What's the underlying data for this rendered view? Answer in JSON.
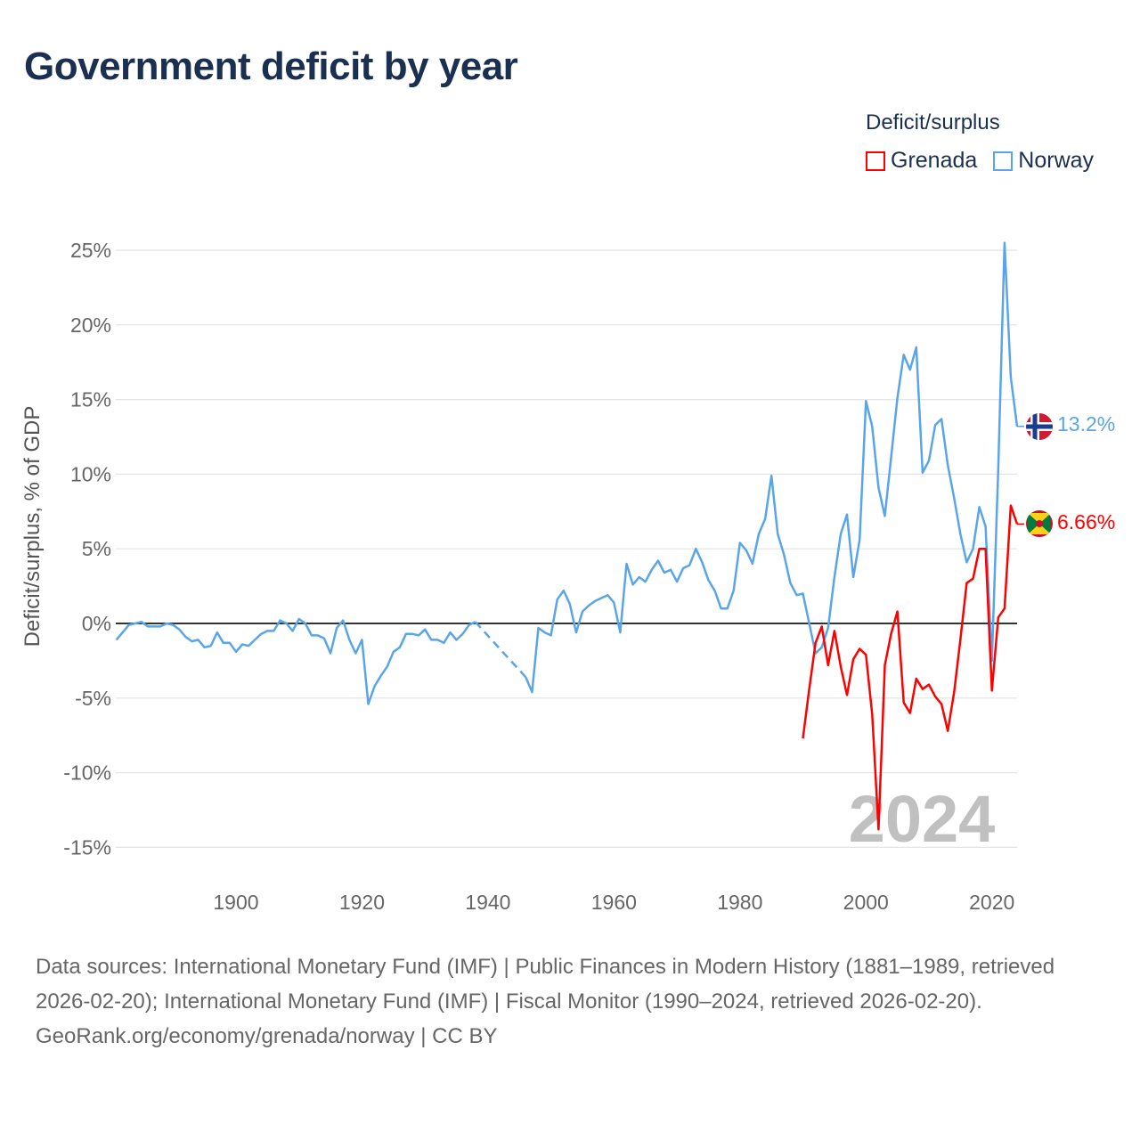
{
  "title": "Government deficit by year",
  "legend": {
    "title": "Deficit/surplus",
    "items": [
      {
        "name": "Grenada",
        "color": "#ff0000"
      },
      {
        "name": "Norway",
        "color": "#5aa5ea"
      }
    ]
  },
  "watermark_year": "2024",
  "footer": {
    "sources": "Data sources: International Monetary Fund (IMF) | Public Finances in Modern History (1881–1989, retrieved 2026-02-20); International Monetary Fund (IMF) | Fiscal Monitor (1990–2024, retrieved 2026-02-20).",
    "credit": "GeoRank.org/economy/grenada/norway | CC BY"
  },
  "chart_data": {
    "type": "line",
    "title": "Government deficit by year",
    "xlabel": "",
    "ylabel": "Deficit/surplus, % of GDP",
    "xlim": [
      1881,
      2024
    ],
    "ylim": [
      -15,
      25
    ],
    "xticks": [
      "1900",
      "1920",
      "1940",
      "1960",
      "1980",
      "2000",
      "2020"
    ],
    "yticks": [
      "25%",
      "20%",
      "15%",
      "10%",
      "5%",
      "0%",
      "-5%",
      "-10%",
      "-15%"
    ],
    "grid": true,
    "legend_position": "top-right",
    "end_labels": {
      "Norway": "13.2%",
      "Grenada": "6.66%"
    },
    "series": [
      {
        "name": "Norway",
        "color": "#5aa5ea",
        "start_year": 1881,
        "values": [
          -1.1,
          -0.6,
          -0.1,
          0.0,
          0.1,
          -0.2,
          -0.2,
          -0.2,
          0.0,
          -0.1,
          -0.4,
          -0.9,
          -1.2,
          -1.1,
          -1.6,
          -1.5,
          -0.6,
          -1.3,
          -1.3,
          -1.9,
          -1.4,
          -1.5,
          -1.1,
          -0.7,
          -0.5,
          -0.5,
          0.2,
          0.0,
          -0.5,
          0.3,
          0.0,
          -0.8,
          -0.8,
          -1.0,
          -2.0,
          -0.3,
          0.2,
          -1.1,
          -2.0,
          -1.1,
          -5.4,
          -4.2,
          -3.5,
          -2.9,
          -1.9,
          -1.6,
          -0.7,
          -0.7,
          -0.8,
          -0.4,
          -1.1,
          -1.1,
          -1.3,
          -0.6,
          -1.1,
          -0.7,
          -0.1,
          0.1,
          null,
          null,
          null,
          null,
          null,
          null,
          null,
          -3.6,
          -4.6,
          -0.3,
          -0.6,
          -0.8,
          1.6,
          2.2,
          1.3,
          -0.6,
          0.8,
          1.2,
          1.5,
          1.7,
          1.9,
          1.4,
          -0.6,
          4.0,
          2.6,
          3.1,
          2.8,
          3.6,
          4.2,
          3.4,
          3.6,
          2.8,
          3.7,
          3.9,
          5.0,
          4.1,
          2.9,
          2.2,
          1.0,
          1.0,
          2.2,
          5.4,
          4.9,
          4.0,
          6.0,
          7.0,
          9.9,
          6.0,
          4.6,
          2.7,
          1.9,
          2.0,
          0.0,
          -2.0,
          -1.6,
          -0.3,
          3.1,
          6.0,
          7.3,
          3.1,
          5.6,
          14.9,
          13.2,
          9.1,
          7.2,
          11.1,
          15.1,
          18.0,
          17.0,
          18.5,
          10.1,
          10.9,
          13.3,
          13.7,
          10.6,
          8.4,
          6.0,
          4.1,
          5.0,
          7.8,
          6.5,
          -2.5,
          10.3,
          25.5,
          16.5,
          13.2
        ]
      },
      {
        "name": "Grenada",
        "color": "#ff0000",
        "start_year": 1990,
        "values": [
          -7.7,
          -4.4,
          -1.3,
          -0.2,
          -2.8,
          -0.5,
          -2.9,
          -4.8,
          -2.4,
          -1.7,
          -2.1,
          -6.1,
          -13.8,
          -2.8,
          -0.7,
          0.8,
          -5.3,
          -6.0,
          -3.7,
          -4.4,
          -4.1,
          -4.9,
          -5.4,
          -7.2,
          -4.6,
          -1.1,
          2.7,
          3.0,
          5.0,
          5.0,
          -4.5,
          0.4,
          1.0,
          7.9,
          6.66
        ]
      }
    ]
  }
}
